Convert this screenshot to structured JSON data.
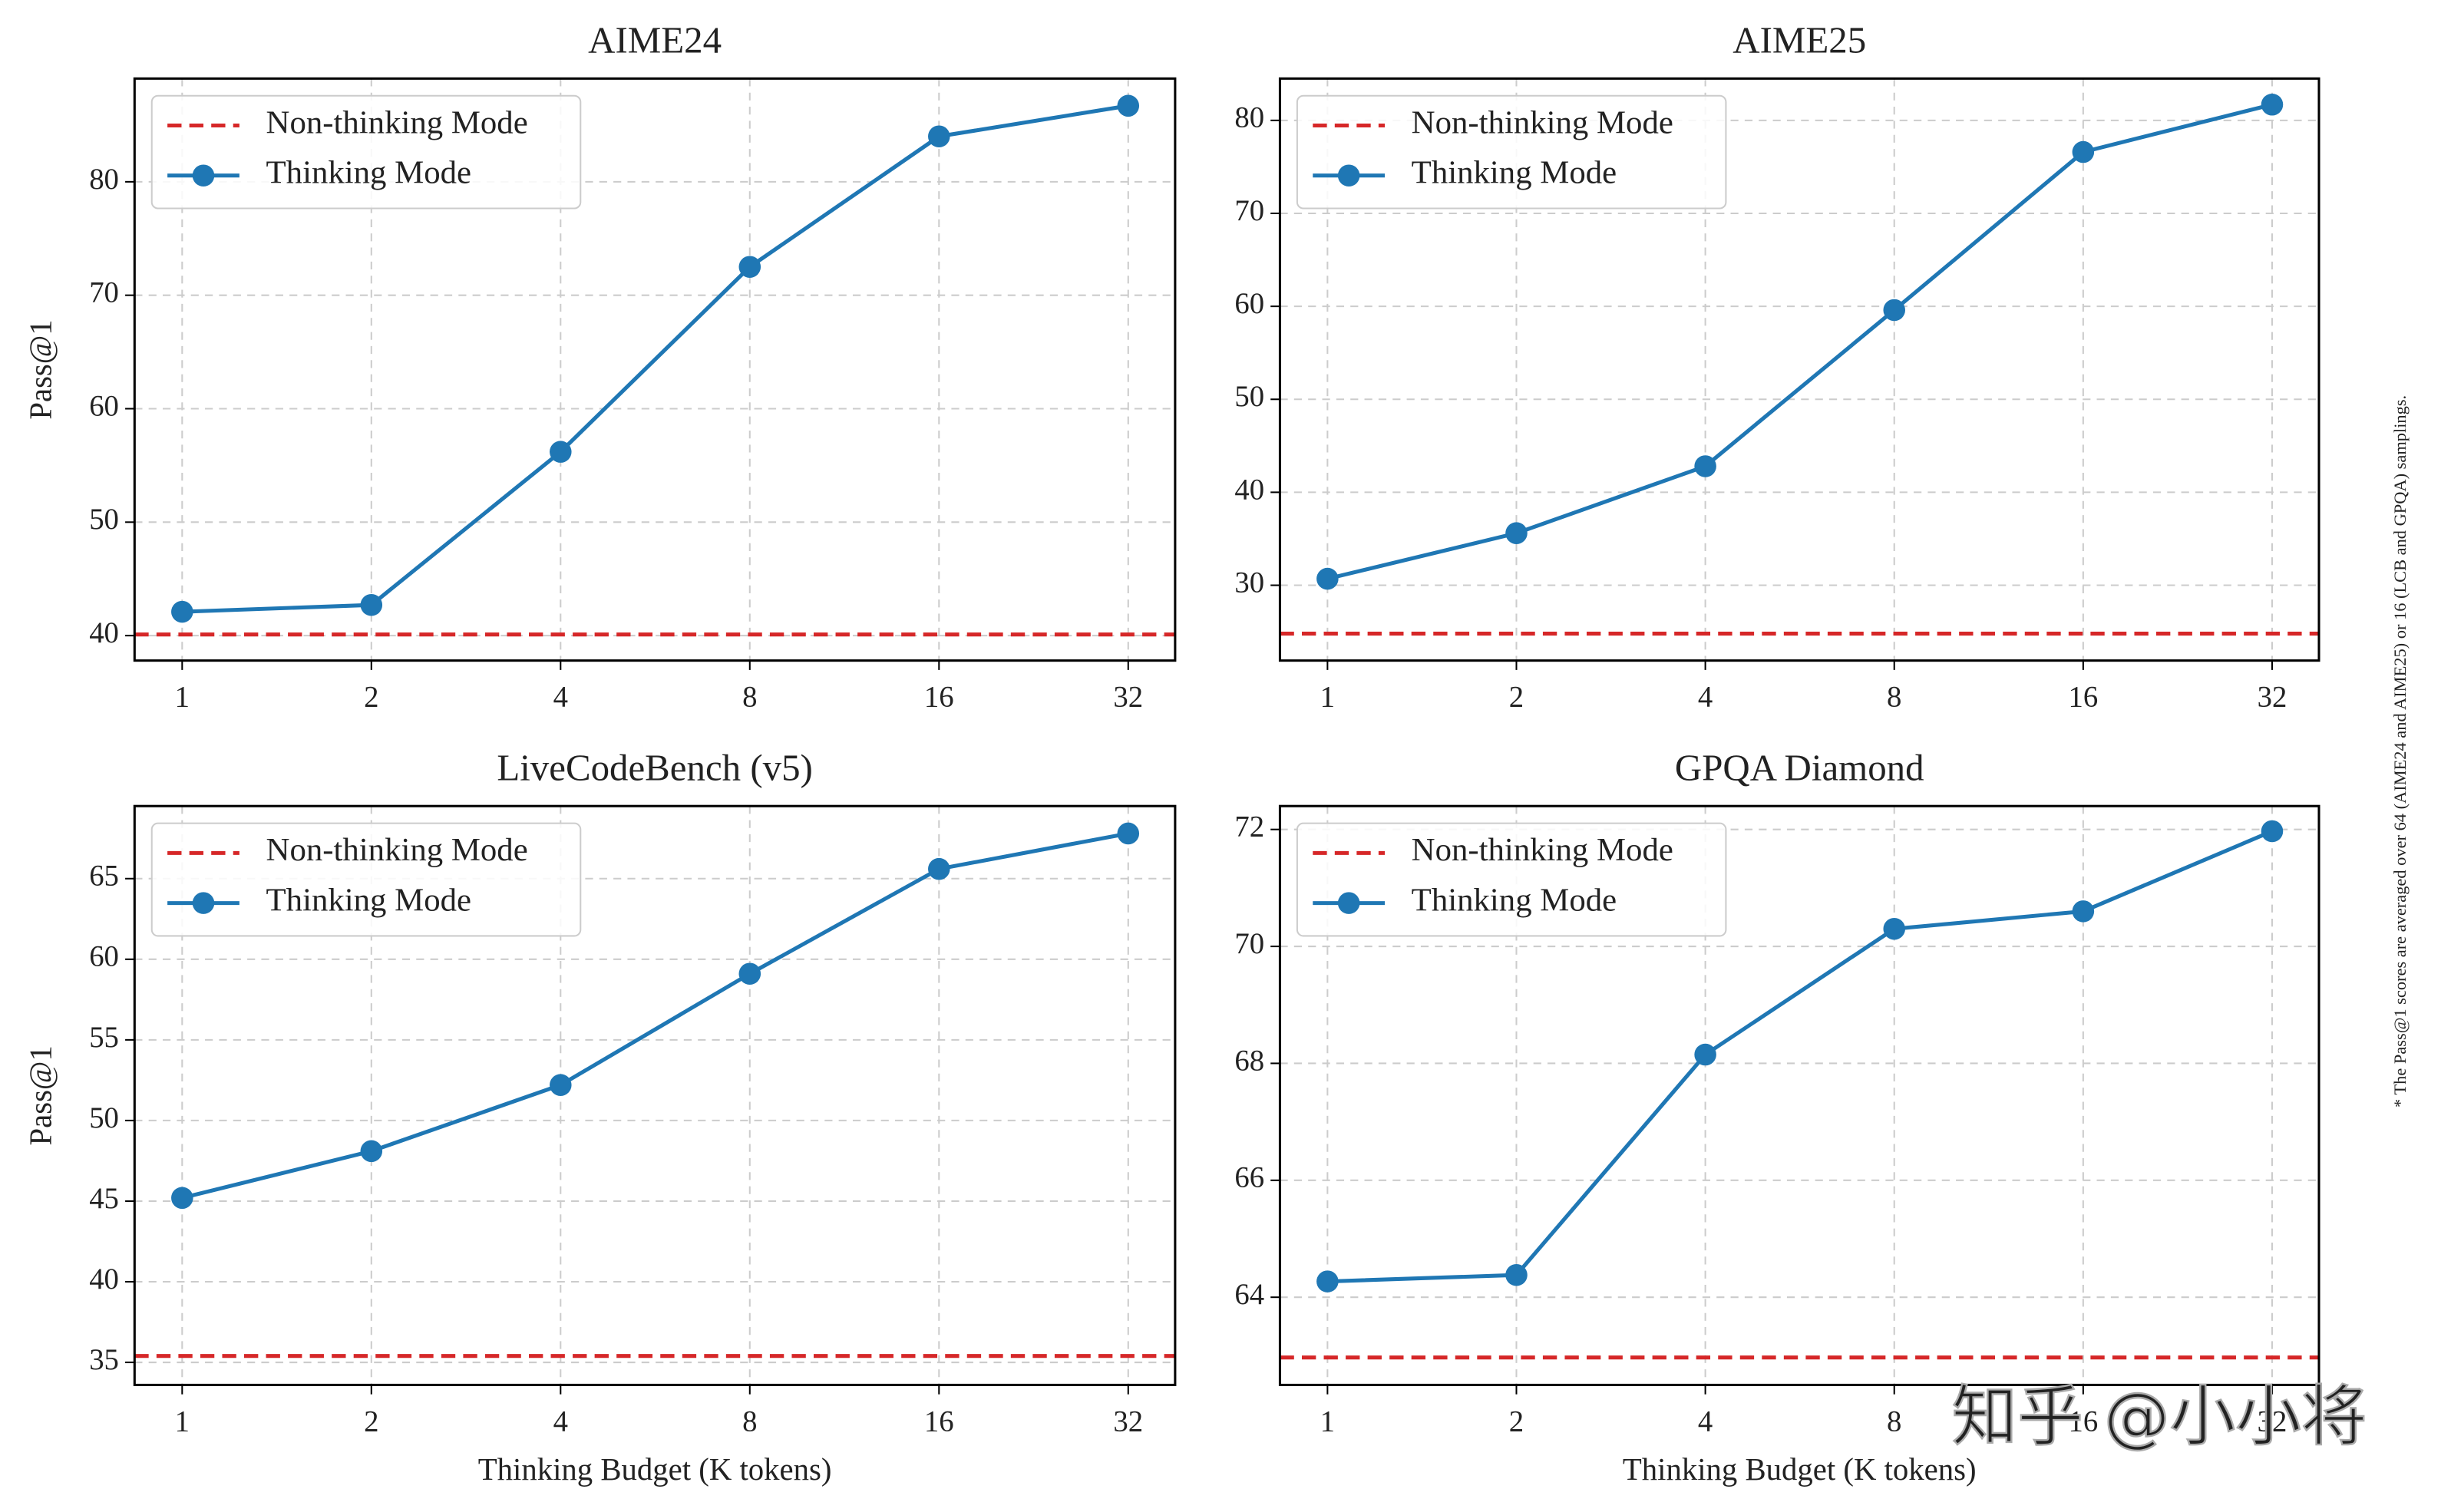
{
  "chart_data": [
    {
      "type": "line",
      "title": "AIME24",
      "ylabel": "Pass@1",
      "x": [
        1,
        2,
        4,
        8,
        16,
        32
      ],
      "xscale": "log",
      "xlim": [
        0.84,
        38
      ],
      "xticks": [
        1,
        2,
        4,
        8,
        16,
        32
      ],
      "ylim": [
        37.8,
        89.1
      ],
      "yticks": [
        40,
        50,
        60,
        70,
        80
      ],
      "grid": true,
      "legend": "upper left",
      "series": [
        {
          "name": "Non-thinking Mode",
          "color": "#d62728",
          "dashed": true,
          "hline": 40.1
        },
        {
          "name": "Thinking Mode",
          "color": "#1f77b4",
          "values": [
            42.1,
            42.7,
            56.2,
            72.5,
            84.0,
            86.7
          ]
        }
      ]
    },
    {
      "type": "line",
      "title": "AIME25",
      "x": [
        1,
        2,
        4,
        8,
        16,
        32
      ],
      "xscale": "log",
      "xlim": [
        0.84,
        38
      ],
      "xticks": [
        1,
        2,
        4,
        8,
        16,
        32
      ],
      "ylim": [
        21.9,
        84.5
      ],
      "yticks": [
        30,
        40,
        50,
        60,
        70,
        80
      ],
      "grid": true,
      "legend": "upper left",
      "series": [
        {
          "name": "Non-thinking Mode",
          "color": "#d62728",
          "dashed": true,
          "hline": 24.8
        },
        {
          "name": "Thinking Mode",
          "color": "#1f77b4",
          "values": [
            30.7,
            35.6,
            42.8,
            59.6,
            76.6,
            81.7
          ]
        }
      ]
    },
    {
      "type": "line",
      "title": "LiveCodeBench (v5)",
      "ylabel": "Pass@1",
      "xlabel": "Thinking Budget (K tokens)",
      "x": [
        1,
        2,
        4,
        8,
        16,
        32
      ],
      "xscale": "log",
      "xlim": [
        0.84,
        38
      ],
      "xticks": [
        1,
        2,
        4,
        8,
        16,
        32
      ],
      "ylim": [
        33.6,
        69.5
      ],
      "yticks": [
        35,
        40,
        45,
        50,
        55,
        60,
        65
      ],
      "grid": true,
      "legend": "upper left",
      "series": [
        {
          "name": "Non-thinking Mode",
          "color": "#d62728",
          "dashed": true,
          "hline": 35.4
        },
        {
          "name": "Thinking Mode",
          "color": "#1f77b4",
          "values": [
            45.2,
            48.1,
            52.2,
            59.1,
            65.6,
            67.8
          ]
        }
      ]
    },
    {
      "type": "line",
      "title": "GPQA Diamond",
      "xlabel": "Thinking Budget (K tokens)",
      "x": [
        1,
        2,
        4,
        8,
        16,
        32
      ],
      "xscale": "log",
      "xlim": [
        0.84,
        38
      ],
      "xticks": [
        1,
        2,
        4,
        8,
        16,
        32
      ],
      "ylim": [
        62.5,
        72.4
      ],
      "yticks": [
        64,
        66,
        68,
        70,
        72
      ],
      "grid": true,
      "legend": "upper left",
      "series": [
        {
          "name": "Non-thinking Mode",
          "color": "#d62728",
          "dashed": true,
          "hline": 62.97
        },
        {
          "name": "Thinking Mode",
          "color": "#1f77b4",
          "values": [
            64.27,
            64.38,
            68.15,
            70.3,
            70.6,
            71.97
          ]
        }
      ]
    }
  ],
  "footnote": "* The Pass@1 scores are averaged over 64 (AIME24 and AIME25) or 16 (LCB and GPQA) samplings.",
  "watermark": "知乎 @小小将"
}
